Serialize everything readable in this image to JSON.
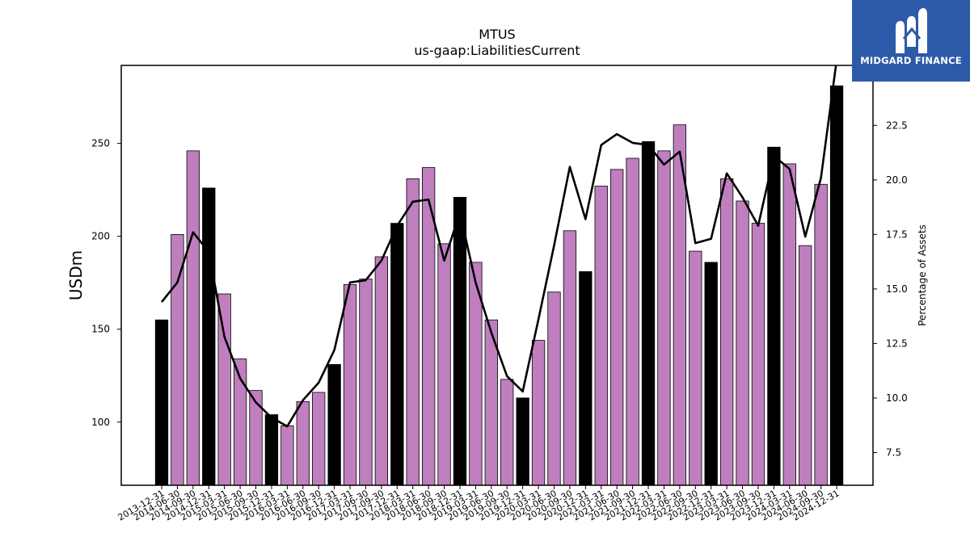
{
  "chart_data": {
    "type": "bar",
    "title": "MTUS",
    "subtitle": "us-gaap:LiabilitiesCurrent",
    "ylabel": "USDm",
    "y2label": "Percentage of Assets",
    "categories": [
      "2013-12-31",
      "2014-06-30",
      "2014-09-30",
      "2014-12-31",
      "2015-03-31",
      "2015-06-30",
      "2015-09-30",
      "2015-12-31",
      "2016-03-31",
      "2016-06-30",
      "2016-09-30",
      "2016-12-31",
      "2017-03-31",
      "2017-06-30",
      "2017-09-30",
      "2017-12-31",
      "2018-03-31",
      "2018-06-30",
      "2018-09-30",
      "2018-12-31",
      "2019-03-31",
      "2019-06-30",
      "2019-09-30",
      "2019-12-31",
      "2020-03-31",
      "2020-06-30",
      "2020-09-30",
      "2020-12-31",
      "2021-03-31",
      "2021-06-30",
      "2021-09-30",
      "2021-12-31",
      "2022-03-31",
      "2022-06-30",
      "2022-09-30",
      "2022-12-31",
      "2023-03-31",
      "2023-06-30",
      "2023-09-30",
      "2023-12-31",
      "2024-03-31",
      "2024-06-30",
      "2024-09-30",
      "2024-12-31"
    ],
    "series": [
      {
        "name": "",
        "type": "bar",
        "values": [
          155,
          201,
          246,
          226,
          169,
          134,
          117,
          104,
          98,
          111,
          116,
          131,
          174,
          177,
          189,
          207,
          231,
          237,
          196,
          221,
          186,
          155,
          123,
          113,
          144,
          170,
          203,
          181,
          227,
          236,
          242,
          251,
          246,
          260,
          192,
          186,
          231,
          219,
          207,
          248,
          239,
          195,
          228,
          281
        ]
      },
      {
        "name": "",
        "type": "line",
        "axis": "right",
        "values": [
          14.4,
          15.3,
          17.6,
          16.7,
          12.8,
          10.9,
          9.8,
          9.1,
          8.7,
          9.9,
          10.7,
          12.2,
          15.3,
          15.4,
          16.3,
          17.9,
          19.0,
          19.1,
          16.3,
          18.5,
          15.3,
          13.0,
          11.0,
          10.3,
          13.6,
          17.0,
          20.6,
          18.2,
          21.6,
          22.1,
          21.7,
          21.6,
          20.7,
          21.3,
          17.1,
          17.3,
          20.3,
          19.2,
          17.9,
          21.1,
          20.5,
          17.4,
          20.1,
          25.5
        ]
      }
    ],
    "year_end_highlight": [
      true,
      false,
      false,
      true,
      false,
      false,
      false,
      true,
      false,
      false,
      false,
      true,
      false,
      false,
      false,
      true,
      false,
      false,
      false,
      true,
      false,
      false,
      false,
      true,
      false,
      false,
      false,
      true,
      false,
      false,
      false,
      true,
      false,
      false,
      false,
      true,
      false,
      false,
      false,
      true,
      false,
      false,
      false,
      true
    ],
    "ylim": [
      66,
      292
    ],
    "y2lim": [
      6.0,
      25.25
    ],
    "yticks": [
      100,
      150,
      200,
      250
    ],
    "y2ticks": [
      7.5,
      10.0,
      12.5,
      15.0,
      17.5,
      20.0,
      22.5
    ],
    "colors": {
      "quarter_bar": "#bf7fbf",
      "year_end_bar": "#000000",
      "line": "#000000",
      "logo_bg": "#2c5aa8"
    },
    "grid": false,
    "legend": "none"
  },
  "logo": {
    "text": "MIDGARD FINANCE",
    "icon": "midgard-m-logo-icon"
  }
}
